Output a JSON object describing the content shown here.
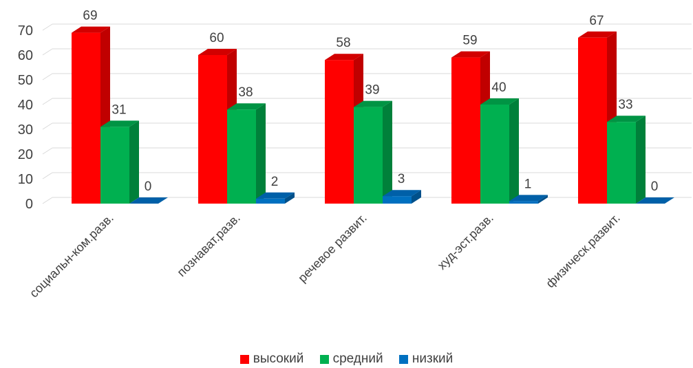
{
  "chart_data": {
    "type": "bar",
    "categories": [
      "социальн-ком.разв.",
      "познават.разв.",
      "речевое развит.",
      "худ-эст.разв.",
      "физическ.развит."
    ],
    "series": [
      {
        "name": "высокий",
        "values": [
          69,
          60,
          58,
          59,
          67
        ],
        "color": "#ff0000",
        "side": "#c00000",
        "top": "#d20000"
      },
      {
        "name": "средний",
        "values": [
          31,
          38,
          39,
          40,
          33
        ],
        "color": "#00b050",
        "side": "#00803a",
        "top": "#009444"
      },
      {
        "name": "низкий",
        "values": [
          0,
          2,
          3,
          1,
          0
        ],
        "color": "#0070c0",
        "side": "#00508a",
        "top": "#0060a8"
      }
    ],
    "y_ticks": [
      "0",
      "10",
      "20",
      "30",
      "40",
      "50",
      "60",
      "70"
    ],
    "ylim": [
      0,
      70
    ],
    "style": "3d-clustered-column",
    "grid": true,
    "legend_position": "bottom"
  }
}
